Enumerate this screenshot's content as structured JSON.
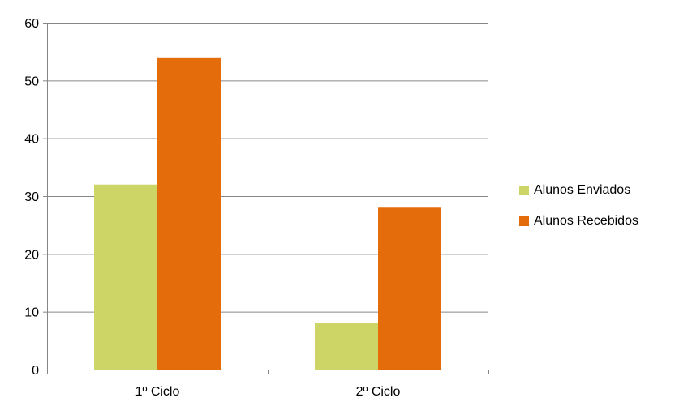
{
  "chart_data": {
    "type": "bar",
    "categories": [
      "1º Ciclo",
      "2º Ciclo"
    ],
    "series": [
      {
        "name": "Alunos Enviados",
        "values": [
          32,
          8
        ],
        "color": "#cdd566"
      },
      {
        "name": "Alunos Recebidos",
        "values": [
          54,
          28
        ],
        "color": "#e46c0a"
      }
    ],
    "ylim": [
      0,
      60
    ],
    "yticks": [
      0,
      10,
      20,
      30,
      40,
      50,
      60
    ],
    "grid": true,
    "legend_position": "right",
    "title": "",
    "xlabel": "",
    "ylabel": ""
  }
}
